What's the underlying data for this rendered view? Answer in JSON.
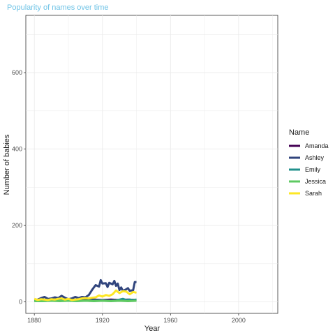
{
  "chart_data": {
    "type": "line",
    "title": "Popularity of names over time",
    "title_color": "#6ec3e6",
    "xlabel": "Year",
    "ylabel": "Number of babies",
    "xlim": [
      1875,
      2023
    ],
    "ylim": [
      -30,
      750
    ],
    "x_ticks": [
      1880,
      1920,
      1960,
      2000
    ],
    "y_ticks": [
      0,
      200,
      400,
      600
    ],
    "grid": true,
    "legend": {
      "title": "Name",
      "placement": "right"
    },
    "series": [
      {
        "name": "Amanda",
        "color": "#440154",
        "points": [
          [
            1880,
            5
          ],
          [
            1885,
            6
          ],
          [
            1890,
            5
          ],
          [
            1895,
            6
          ],
          [
            1900,
            5
          ],
          [
            1905,
            6
          ],
          [
            1910,
            5
          ],
          [
            1915,
            6
          ],
          [
            1920,
            5
          ],
          [
            1925,
            6
          ],
          [
            1930,
            5
          ],
          [
            1935,
            6
          ],
          [
            1940,
            5
          ]
        ]
      },
      {
        "name": "Ashley",
        "color": "#31457d",
        "points": [
          [
            1880,
            5
          ],
          [
            1882,
            6
          ],
          [
            1884,
            10
          ],
          [
            1886,
            13
          ],
          [
            1888,
            8
          ],
          [
            1890,
            9
          ],
          [
            1892,
            12
          ],
          [
            1894,
            10
          ],
          [
            1896,
            16
          ],
          [
            1898,
            11
          ],
          [
            1900,
            7
          ],
          [
            1902,
            9
          ],
          [
            1904,
            13
          ],
          [
            1906,
            10
          ],
          [
            1908,
            13
          ],
          [
            1910,
            12
          ],
          [
            1912,
            18
          ],
          [
            1914,
            32
          ],
          [
            1916,
            44
          ],
          [
            1918,
            40
          ],
          [
            1919,
            57
          ],
          [
            1920,
            48
          ],
          [
            1922,
            49
          ],
          [
            1923,
            39
          ],
          [
            1924,
            50
          ],
          [
            1926,
            46
          ],
          [
            1927,
            55
          ],
          [
            1928,
            42
          ],
          [
            1929,
            48
          ],
          [
            1930,
            31
          ],
          [
            1931,
            38
          ],
          [
            1932,
            29
          ],
          [
            1933,
            31
          ],
          [
            1934,
            33
          ],
          [
            1935,
            36
          ],
          [
            1936,
            29
          ],
          [
            1937,
            30
          ],
          [
            1938,
            30
          ],
          [
            1939,
            52
          ],
          [
            1940,
            52
          ]
        ]
      },
      {
        "name": "Emily",
        "color": "#21908c",
        "points": [
          [
            1880,
            3
          ],
          [
            1885,
            4
          ],
          [
            1890,
            3
          ],
          [
            1895,
            4
          ],
          [
            1900,
            3
          ],
          [
            1905,
            4
          ],
          [
            1910,
            3
          ],
          [
            1915,
            4
          ],
          [
            1920,
            4
          ],
          [
            1925,
            3
          ],
          [
            1928,
            4
          ],
          [
            1930,
            6
          ],
          [
            1932,
            8
          ],
          [
            1934,
            5
          ],
          [
            1936,
            6
          ],
          [
            1938,
            5
          ],
          [
            1940,
            6
          ]
        ]
      },
      {
        "name": "Jessica",
        "color": "#5ec962",
        "points": [
          [
            1880,
            2
          ],
          [
            1885,
            2
          ],
          [
            1890,
            3
          ],
          [
            1895,
            2
          ],
          [
            1900,
            3
          ],
          [
            1905,
            2
          ],
          [
            1910,
            3
          ],
          [
            1915,
            2
          ],
          [
            1920,
            3
          ],
          [
            1925,
            2
          ],
          [
            1930,
            3
          ],
          [
            1935,
            2
          ],
          [
            1940,
            3
          ]
        ]
      },
      {
        "name": "Sarah",
        "color": "#fde725",
        "points": [
          [
            1880,
            8
          ],
          [
            1882,
            5
          ],
          [
            1884,
            7
          ],
          [
            1886,
            6
          ],
          [
            1888,
            5
          ],
          [
            1890,
            7
          ],
          [
            1892,
            6
          ],
          [
            1894,
            8
          ],
          [
            1896,
            9
          ],
          [
            1898,
            6
          ],
          [
            1900,
            8
          ],
          [
            1902,
            5
          ],
          [
            1904,
            6
          ],
          [
            1906,
            7
          ],
          [
            1908,
            9
          ],
          [
            1910,
            10
          ],
          [
            1912,
            9
          ],
          [
            1914,
            11
          ],
          [
            1916,
            12
          ],
          [
            1918,
            17
          ],
          [
            1920,
            14
          ],
          [
            1922,
            18
          ],
          [
            1924,
            16
          ],
          [
            1926,
            20
          ],
          [
            1928,
            30
          ],
          [
            1930,
            23
          ],
          [
            1932,
            28
          ],
          [
            1934,
            27
          ],
          [
            1936,
            20
          ],
          [
            1938,
            26
          ],
          [
            1940,
            24
          ]
        ]
      }
    ]
  }
}
